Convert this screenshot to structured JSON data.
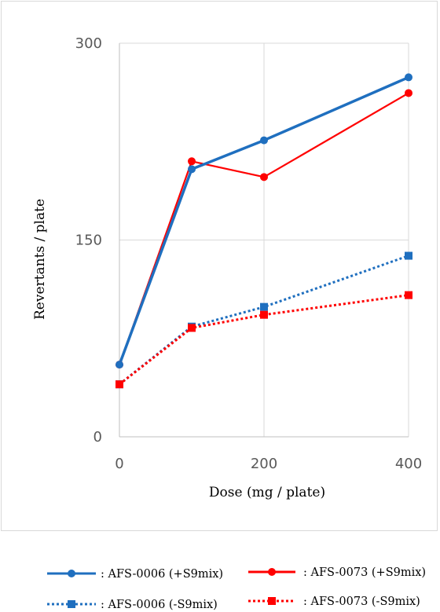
{
  "chart_data": {
    "type": "line",
    "x": [
      "0",
      "100",
      "200",
      "400"
    ],
    "xlabel": "Dose (mg / plate)",
    "ylabel": "Revertants / plate",
    "ylim": [
      0,
      300
    ],
    "yticks": [
      "0",
      "150",
      "300"
    ],
    "xticks": [
      "0",
      "200",
      "400"
    ],
    "series": [
      {
        "name": ": AFS-0006 (+S9mix)",
        "values": [
          55,
          204,
          226,
          274
        ],
        "color": "#1f6fbf",
        "dash": "solid",
        "marker": "circle"
      },
      {
        "name": ": AFS-0073 (+S9mix)",
        "values": [
          55,
          210,
          198,
          262
        ],
        "color": "#ff0000",
        "dash": "solid",
        "marker": "circle"
      },
      {
        "name": ": AFS-0006 (-S9mix)",
        "values": [
          40,
          84,
          99,
          138
        ],
        "color": "#1f6fbf",
        "dash": "dotted",
        "marker": "square"
      },
      {
        "name": ": AFS-0073 (-S9mix)",
        "values": [
          40,
          83,
          93,
          108
        ],
        "color": "#ff0000",
        "dash": "dotted",
        "marker": "square"
      }
    ],
    "grid": "vertical-and-horizontal",
    "legend": "bottom"
  }
}
